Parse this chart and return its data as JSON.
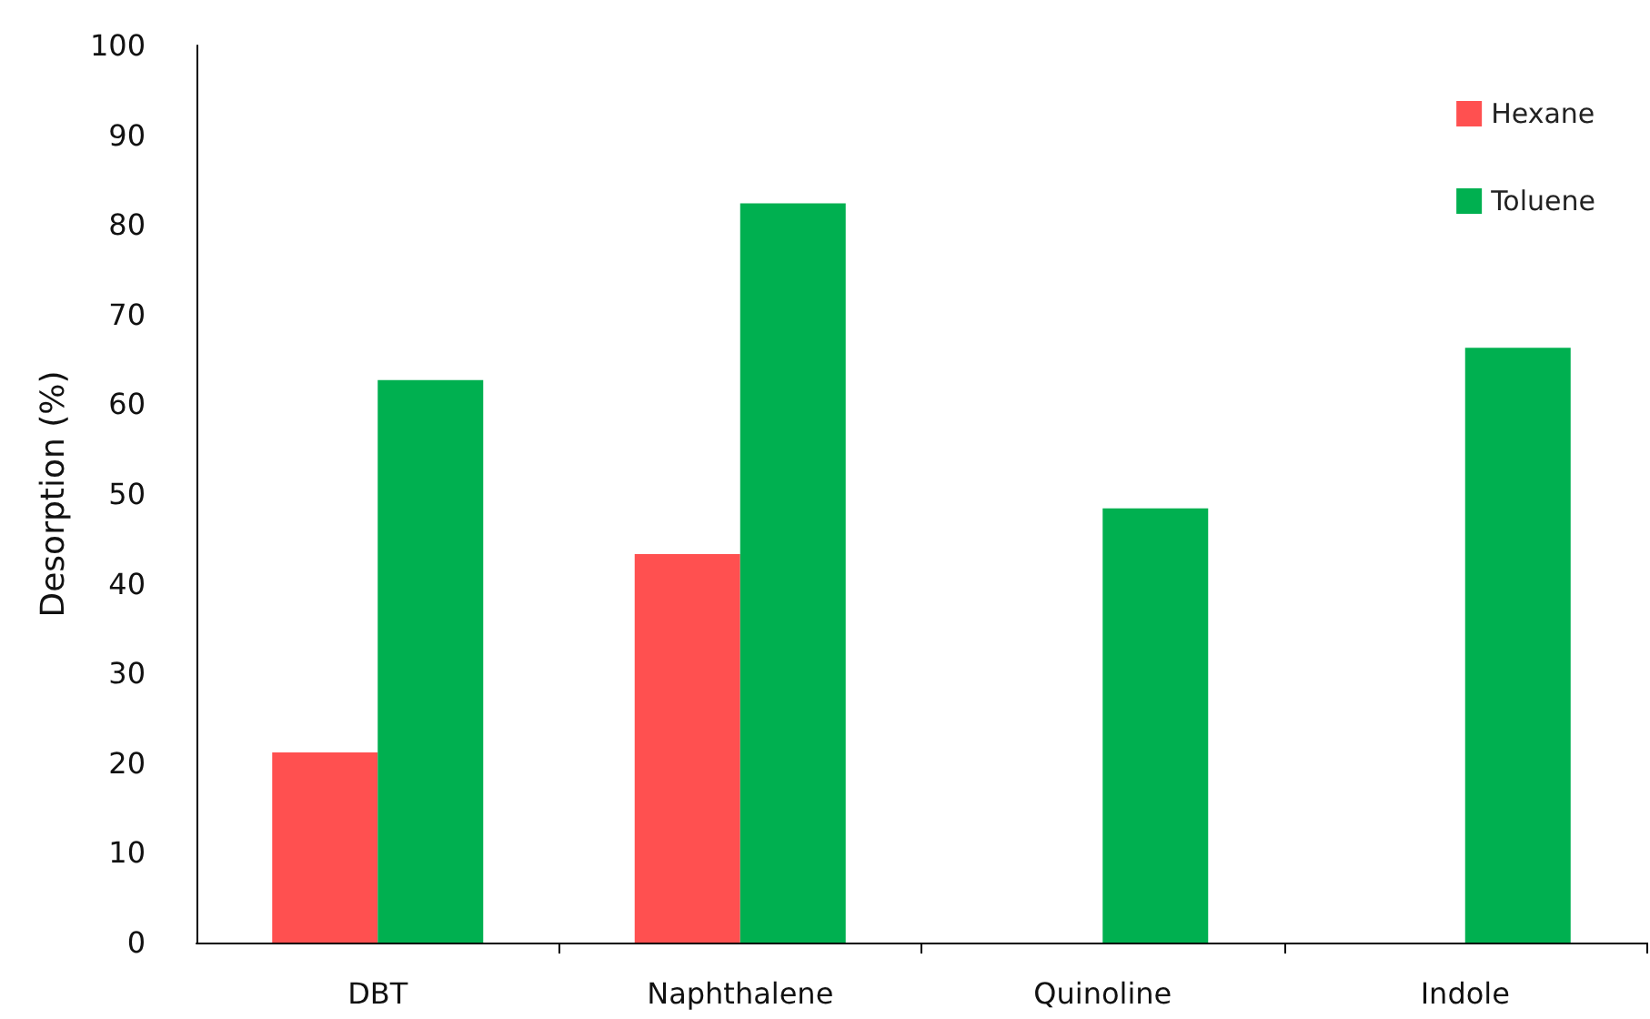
{
  "chart_data": {
    "type": "bar",
    "ylabel": "Desorption (%)",
    "categories": [
      "DBT",
      "Naphthalene",
      "Quinoline",
      "Indole"
    ],
    "series": [
      {
        "name": "Hexane",
        "color": "#ff5050",
        "values": [
          21.2,
          43.3,
          0,
          0
        ]
      },
      {
        "name": "Toluene",
        "color": "#00b050",
        "values": [
          62.7,
          82.4,
          48.4,
          66.3
        ]
      }
    ],
    "ylim": [
      0,
      100
    ],
    "yticks": [
      0,
      10,
      20,
      30,
      40,
      50,
      60,
      70,
      80,
      90,
      100
    ],
    "grid": false,
    "legend": "top right"
  }
}
